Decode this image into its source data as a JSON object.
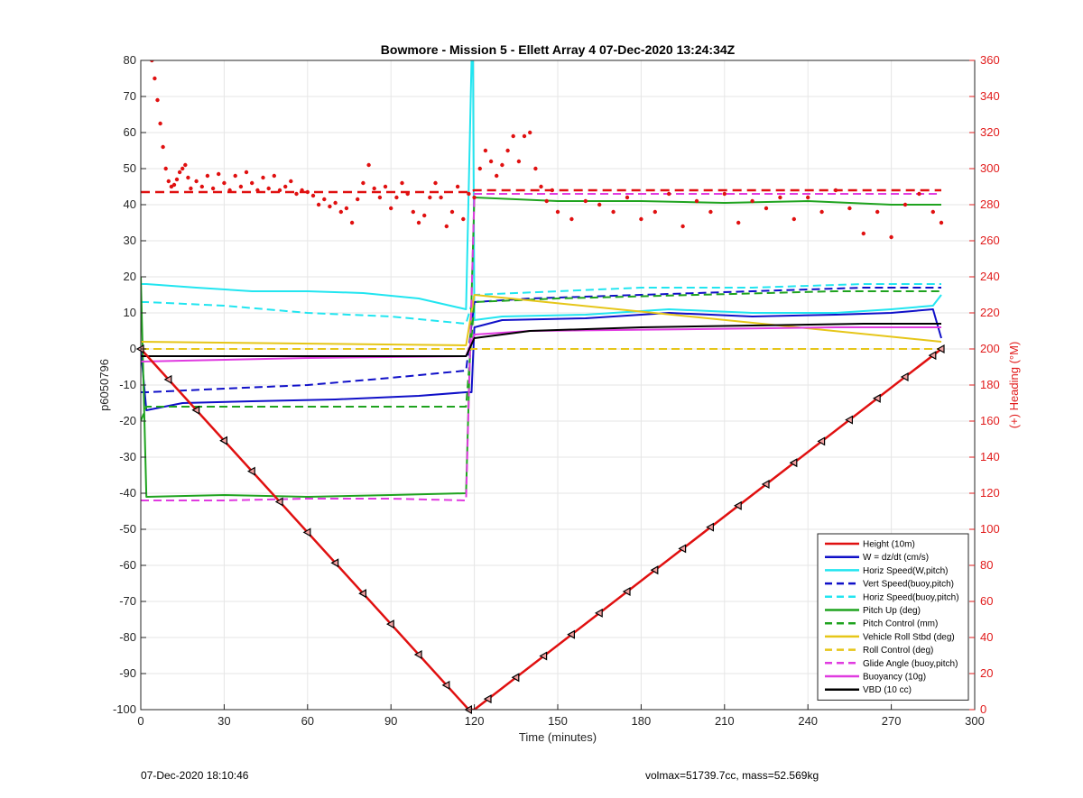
{
  "chart_data": {
    "type": "line",
    "title": "Bowmore - Mission 5 - Ellett Array 4 07-Dec-2020 13:24:34Z",
    "xlabel": "Time (minutes)",
    "ylabel": "p6050796",
    "y2label": "(+) Heading (°M)",
    "xlim": [
      0,
      300
    ],
    "ylim": [
      -100,
      80
    ],
    "y2lim": [
      0,
      360
    ],
    "x_ticks": [
      "0",
      "30",
      "60",
      "90",
      "120",
      "150",
      "180",
      "210",
      "240",
      "270",
      "300"
    ],
    "y_ticks": [
      "80",
      "70",
      "60",
      "50",
      "40",
      "30",
      "20",
      "10",
      "0",
      "-10",
      "-20",
      "-30",
      "-40",
      "-50",
      "-60",
      "-70",
      "-80",
      "-90",
      "-100"
    ],
    "y2_ticks": [
      "360",
      "340",
      "320",
      "300",
      "280",
      "260",
      "240",
      "220",
      "200",
      "180",
      "160",
      "140",
      "120",
      "100",
      "80",
      "60",
      "40",
      "20",
      "0"
    ],
    "grid": true,
    "legend_position": "bottom-right",
    "series": [
      {
        "name": "Height (10m)",
        "color": "#e01010",
        "style": "solid",
        "x": [
          0,
          118,
          120,
          288
        ],
        "y": [
          0,
          -100,
          -100,
          0
        ]
      },
      {
        "name": "W = dz/dt (cm/s)",
        "color": "#1010c8",
        "style": "solid",
        "x": [
          0,
          2,
          15,
          40,
          70,
          100,
          117,
          119,
          120,
          130,
          160,
          190,
          220,
          250,
          270,
          285,
          288
        ],
        "y": [
          0,
          -17,
          -15,
          -14.5,
          -14,
          -13,
          -12,
          -12,
          6,
          8,
          8.5,
          10,
          9,
          9.5,
          10,
          11,
          3
        ]
      },
      {
        "name": "Horiz Speed(W,pitch)",
        "color": "#22e5f0",
        "style": "solid",
        "x": [
          0,
          2,
          20,
          40,
          60,
          80,
          100,
          117,
          119,
          119.5,
          120,
          130,
          160,
          190,
          220,
          250,
          270,
          285,
          288
        ],
        "y": [
          18,
          18,
          17,
          16,
          16,
          15.5,
          14,
          11,
          80,
          80,
          8,
          9,
          9.5,
          11,
          10,
          10,
          11,
          12,
          15
        ]
      },
      {
        "name": "Vert Speed(buoy,pitch)",
        "color": "#1010c8",
        "style": "dashed",
        "x": [
          0,
          2,
          30,
          60,
          90,
          117,
          120,
          140,
          180,
          220,
          260,
          288
        ],
        "y": [
          -12,
          -12,
          -11,
          -10,
          -8,
          -6,
          13,
          14,
          15,
          16,
          17,
          17
        ]
      },
      {
        "name": "Horiz Speed(buoy,pitch)",
        "color": "#22e5f0",
        "style": "dashed",
        "x": [
          0,
          2,
          30,
          60,
          90,
          117,
          120,
          150,
          180,
          220,
          260,
          288
        ],
        "y": [
          13,
          13,
          12,
          10,
          9,
          7,
          15,
          16,
          17,
          17,
          18,
          18
        ]
      },
      {
        "name": "Pitch Up (deg)",
        "color": "#1fa31f",
        "style": "solid",
        "x": [
          0,
          2,
          30,
          60,
          90,
          117,
          120,
          150,
          180,
          210,
          240,
          270,
          288
        ],
        "y": [
          20,
          -41,
          -40.5,
          -41,
          -40.5,
          -40,
          42,
          41,
          41,
          40.5,
          41,
          40,
          40
        ]
      },
      {
        "name": "Pitch Control (mm)",
        "color": "#1fa31f",
        "style": "dashed",
        "x": [
          0,
          2,
          30,
          60,
          90,
          117,
          120,
          150,
          200,
          250,
          288
        ],
        "y": [
          -20,
          -16,
          -16,
          -16,
          -16,
          -16,
          13,
          14,
          15,
          16,
          16
        ]
      },
      {
        "name": "Vehicle Roll Stbd (deg)",
        "color": "#e6c619",
        "style": "solid",
        "x": [
          0,
          117,
          120,
          288
        ],
        "y": [
          2,
          1,
          15,
          2
        ]
      },
      {
        "name": "Roll Control (deg)",
        "color": "#e6c619",
        "style": "dashed",
        "x": [
          0,
          117,
          120,
          288
        ],
        "y": [
          0,
          0,
          0,
          0
        ]
      },
      {
        "name": "Glide Angle (buoy,pitch)",
        "color": "#e03be0",
        "style": "dashed",
        "x": [
          0,
          2,
          30,
          60,
          90,
          117,
          120,
          150,
          200,
          250,
          288
        ],
        "y": [
          -42,
          -42,
          -42,
          -41.5,
          -41.5,
          -42,
          43,
          43,
          43,
          43,
          43
        ]
      },
      {
        "name": "Buoyancy (10g)",
        "color": "#e03be0",
        "style": "solid",
        "x": [
          0,
          60,
          117,
          120,
          140,
          200,
          250,
          288
        ],
        "y": [
          -3.5,
          -2.5,
          -2,
          4,
          5,
          5.5,
          6,
          6
        ]
      },
      {
        "name": "VBD (10 cc)",
        "color": "#000000",
        "style": "solid",
        "x": [
          0,
          60,
          117,
          120,
          140,
          180,
          220,
          260,
          288
        ],
        "y": [
          -2,
          -2,
          -2,
          3,
          5,
          6,
          6.5,
          7,
          7
        ]
      }
    ],
    "heading_reference": {
      "color": "#e01010",
      "style": "dashed",
      "x": [
        0,
        118,
        120,
        288
      ],
      "y2": [
        287,
        287,
        288,
        288
      ]
    },
    "heading_points": {
      "color": "#e01010",
      "x": [
        4,
        5,
        6,
        7,
        8,
        9,
        10,
        11,
        12,
        13,
        14,
        15,
        16,
        17,
        18,
        20,
        22,
        24,
        26,
        28,
        30,
        32,
        34,
        36,
        38,
        40,
        42,
        44,
        46,
        48,
        50,
        52,
        54,
        56,
        58,
        60,
        62,
        64,
        66,
        68,
        70,
        72,
        74,
        76,
        78,
        80,
        82,
        84,
        86,
        88,
        90,
        92,
        94,
        96,
        98,
        100,
        102,
        104,
        106,
        108,
        110,
        112,
        114,
        116,
        118,
        120,
        122,
        124,
        126,
        128,
        130,
        132,
        134,
        136,
        138,
        140,
        142,
        144,
        146,
        148,
        150,
        155,
        160,
        165,
        170,
        175,
        180,
        185,
        190,
        195,
        200,
        205,
        210,
        215,
        220,
        225,
        230,
        235,
        240,
        245,
        250,
        255,
        260,
        265,
        270,
        275,
        280,
        285,
        288
      ],
      "y2": [
        360,
        350,
        338,
        325,
        312,
        300,
        293,
        290,
        291,
        294,
        298,
        300,
        302,
        295,
        289,
        293,
        290,
        296,
        289,
        297,
        292,
        288,
        296,
        290,
        298,
        292,
        288,
        295,
        289,
        296,
        288,
        290,
        293,
        286,
        288,
        287,
        285,
        280,
        283,
        279,
        281,
        276,
        278,
        270,
        283,
        292,
        302,
        289,
        284,
        290,
        278,
        284,
        292,
        286,
        276,
        270,
        274,
        284,
        292,
        284,
        268,
        276,
        290,
        272,
        286,
        284,
        300,
        310,
        304,
        296,
        302,
        310,
        318,
        304,
        318,
        320,
        300,
        290,
        282,
        288,
        276,
        272,
        282,
        280,
        276,
        284,
        272,
        276,
        286,
        268,
        282,
        276,
        286,
        270,
        282,
        278,
        284,
        272,
        284,
        276,
        288,
        278,
        264,
        276,
        262,
        280,
        286,
        276,
        270
      ]
    },
    "markers": {
      "type": "triangle",
      "x": [
        0,
        10,
        20,
        30,
        40,
        50,
        60,
        70,
        80,
        90,
        100,
        110,
        118,
        125,
        135,
        145,
        155,
        165,
        175,
        185,
        195,
        205,
        215,
        225,
        235,
        245,
        255,
        265,
        275,
        285,
        288
      ]
    },
    "footer_left": "07-Dec-2020 18:10:46",
    "footer_right": "volmax=51739.7cc, mass=52.569kg"
  }
}
